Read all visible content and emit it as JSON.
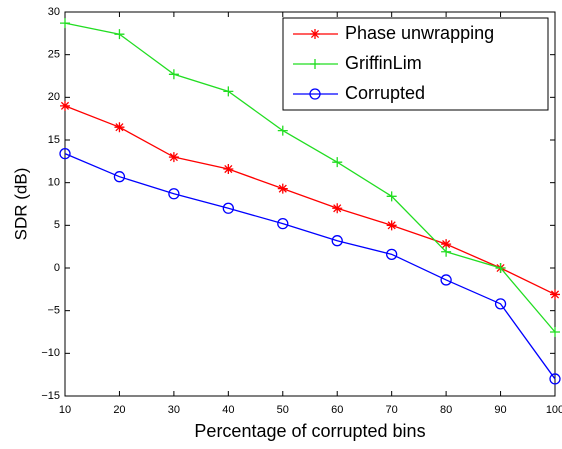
{
  "chart_data": {
    "type": "line",
    "xlabel": "Percentage of corrupted bins",
    "ylabel": "SDR (dB)",
    "x": [
      10,
      20,
      30,
      40,
      50,
      60,
      70,
      80,
      90,
      100
    ],
    "series": [
      {
        "name": "Phase unwrapping",
        "color": "#ff0000",
        "marker": "star",
        "values": [
          19,
          16.5,
          13,
          11.6,
          9.3,
          7,
          5,
          2.8,
          0,
          -3.1
        ]
      },
      {
        "name": "GriffinLim",
        "color": "#22dd22",
        "marker": "plus",
        "values": [
          28.7,
          27.4,
          22.7,
          20.7,
          16.1,
          12.4,
          8.4,
          1.9,
          0,
          -7.5
        ]
      },
      {
        "name": "Corrupted",
        "color": "#0000ff",
        "marker": "circle",
        "values": [
          13.4,
          10.7,
          8.7,
          7,
          5.2,
          3.2,
          1.6,
          -1.4,
          -4.2,
          -13
        ]
      }
    ],
    "xlim": [
      10,
      100
    ],
    "xticks": [
      10,
      20,
      30,
      40,
      50,
      60,
      70,
      80,
      90,
      100
    ],
    "ylim": [
      -15,
      30
    ],
    "yticks": [
      {
        "value": -15,
        "label": "−15"
      },
      {
        "value": -10,
        "label": "−10"
      },
      {
        "value": -5,
        "label": "−5"
      },
      0,
      5,
      10,
      15,
      20,
      25,
      30
    ],
    "legend": "upper right"
  }
}
